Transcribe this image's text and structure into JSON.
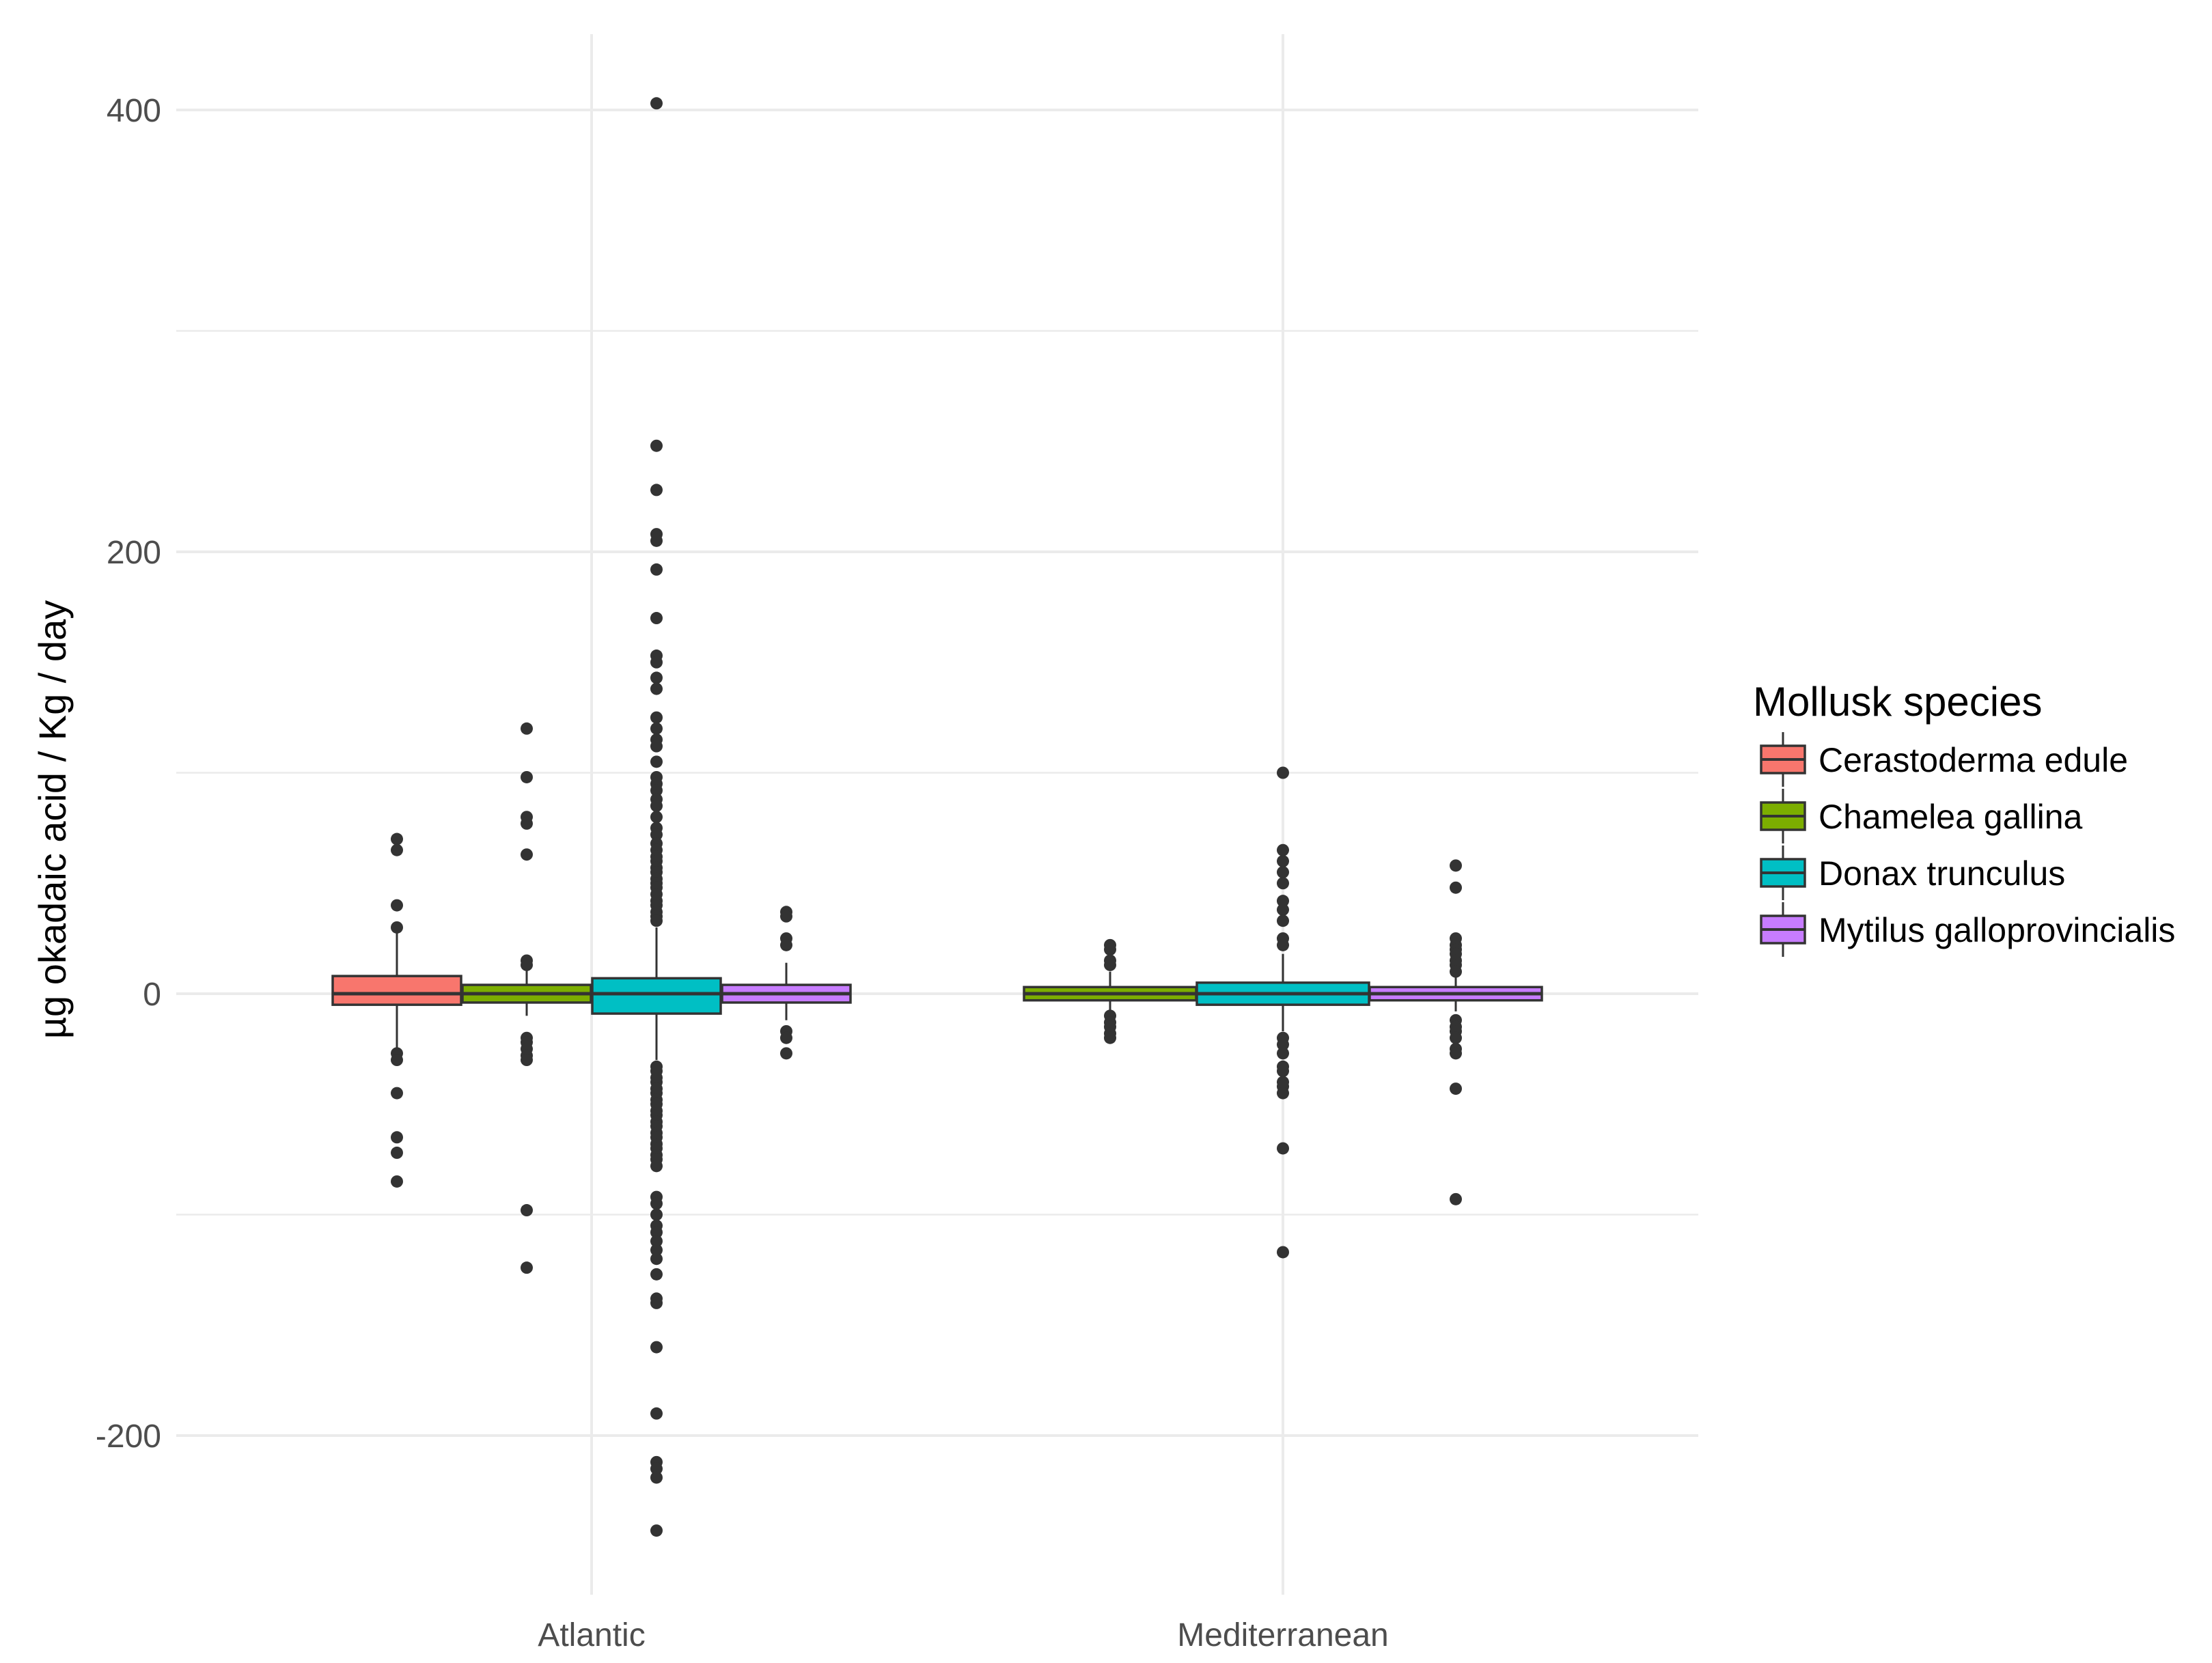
{
  "chart_data": {
    "type": "boxplot",
    "title": "",
    "xlabel": "",
    "ylabel": "µg okadaic acid / Kg / day",
    "categories": [
      "Atlantic",
      "Mediterranean"
    ],
    "yticks": [
      -200,
      0,
      200,
      400
    ],
    "ylim": [
      -250,
      435
    ],
    "grid": true,
    "legend": {
      "title": "Mollusk species",
      "position": "right",
      "entries": [
        {
          "name": "Cerastoderma edule",
          "color": "#F8766D"
        },
        {
          "name": "Chamelea gallina",
          "color": "#7CAE00"
        },
        {
          "name": "Donax trunculus",
          "color": "#00BFC4"
        },
        {
          "name": "Mytilus galloprovincialis",
          "color": "#C77CFF"
        }
      ]
    },
    "series": [
      {
        "name": "Cerastoderma edule",
        "color": "#F8766D",
        "boxes": [
          {
            "category": "Atlantic",
            "q1": -5,
            "median": 0,
            "q3": 8,
            "whisker_low": -25,
            "whisker_high": 30,
            "outliers": [
              70,
              65,
              40,
              30,
              -27,
              -30,
              -45,
              -65,
              -72,
              -85
            ]
          },
          null
        ]
      },
      {
        "name": "Chamelea gallina",
        "color": "#7CAE00",
        "boxes": [
          {
            "category": "Atlantic",
            "q1": -4,
            "median": 0,
            "q3": 4,
            "whisker_low": -10,
            "whisker_high": 12,
            "outliers": [
              120,
              98,
              80,
              77,
              63,
              15,
              13,
              -20,
              -22,
              -25,
              -28,
              -30,
              -98,
              -124
            ]
          },
          {
            "category": "Mediterranean",
            "q1": -3,
            "median": 0,
            "q3": 3,
            "whisker_low": -8,
            "whisker_high": 10,
            "outliers": [
              22,
              20,
              15,
              13,
              -10,
              -13,
              -15,
              -18,
              -20
            ]
          }
        ]
      },
      {
        "name": "Donax trunculus",
        "color": "#00BFC4",
        "boxes": [
          {
            "category": "Atlantic",
            "q1": -9,
            "median": 0,
            "q3": 7,
            "whisker_low": -30,
            "whisker_high": 30,
            "outliers": [
              403,
              248,
              228,
              208,
              205,
              192,
              170,
              153,
              150,
              143,
              138,
              125,
              120,
              115,
              112,
              105,
              98,
              95,
              92,
              88,
              85,
              80,
              75,
              72,
              68,
              65,
              62,
              60,
              57,
              55,
              52,
              50,
              48,
              45,
              42,
              40,
              37,
              35,
              33,
              -33,
              -35,
              -38,
              -40,
              -43,
              -45,
              -48,
              -50,
              -53,
              -55,
              -58,
              -60,
              -63,
              -65,
              -68,
              -70,
              -73,
              -75,
              -78,
              -92,
              -95,
              -100,
              -105,
              -108,
              -112,
              -116,
              -120,
              -127,
              -138,
              -140,
              -160,
              -190,
              -212,
              -215,
              -219,
              -243
            ]
          },
          {
            "category": "Mediterranean",
            "q1": -5,
            "median": 0,
            "q3": 5,
            "whisker_low": -17,
            "whisker_high": 18,
            "outliers": [
              100,
              65,
              60,
              55,
              50,
              42,
              38,
              33,
              25,
              22,
              -20,
              -23,
              -27,
              -33,
              -35,
              -40,
              -42,
              -45,
              -70,
              -117
            ]
          }
        ]
      },
      {
        "name": "Mytilus galloprovincialis",
        "color": "#C77CFF",
        "boxes": [
          {
            "category": "Atlantic",
            "q1": -4,
            "median": 0,
            "q3": 4,
            "whisker_low": -12,
            "whisker_high": 14,
            "outliers": [
              37,
              35,
              25,
              22,
              -17,
              -20,
              -27
            ]
          },
          {
            "category": "Mediterranean",
            "q1": -3,
            "median": 0,
            "q3": 3,
            "whisker_low": -8,
            "whisker_high": 9,
            "outliers": [
              58,
              48,
              25,
              22,
              20,
              18,
              15,
              13,
              10,
              -12,
              -15,
              -17,
              -20,
              -25,
              -27,
              -43,
              -93
            ]
          }
        ]
      }
    ]
  }
}
